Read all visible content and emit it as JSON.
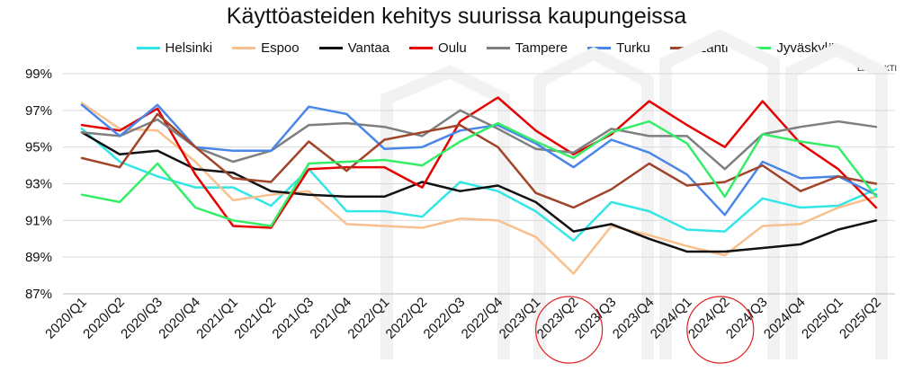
{
  "chart_data": {
    "type": "line",
    "title": "Käyttöasteiden kehitys suurissa kaupungeissa",
    "source": "Lähde: KTI",
    "xlabel": "",
    "ylabel": "",
    "ylim": [
      87,
      99
    ],
    "yticks": [
      "87%",
      "89%",
      "91%",
      "93%",
      "95%",
      "97%",
      "99%"
    ],
    "ytick_values": [
      87,
      89,
      91,
      93,
      95,
      97,
      99
    ],
    "grid": "horizontal",
    "legend_position": "top",
    "categories": [
      "2020/Q1",
      "2020/Q2",
      "2020/Q3",
      "2020/Q4",
      "2021/Q1",
      "2021/Q2",
      "2021/Q3",
      "2021/Q4",
      "2022/Q1",
      "2022/Q2",
      "2022/Q3",
      "2022/Q4",
      "2023/Q1",
      "2023/Q2",
      "2023/Q3",
      "2023/Q4",
      "2024/Q1",
      "2024/Q2",
      "2024/Q3",
      "2024/Q4",
      "2025/Q1",
      "2025/Q2"
    ],
    "highlighted_categories": [
      "2023/Q2",
      "2024/Q2"
    ],
    "highlight_color": "#e02020",
    "series": [
      {
        "name": "Helsinki",
        "color": "#33e6e6",
        "values": [
          96.0,
          94.2,
          93.4,
          92.8,
          92.8,
          91.8,
          93.8,
          91.5,
          91.5,
          91.2,
          93.1,
          92.6,
          91.5,
          89.9,
          92.0,
          91.5,
          90.5,
          90.4,
          92.2,
          91.7,
          91.8,
          92.7
        ]
      },
      {
        "name": "Espoo",
        "color": "#f9c08e",
        "values": [
          97.4,
          96.0,
          95.9,
          94.2,
          92.1,
          92.4,
          92.6,
          90.8,
          90.7,
          90.6,
          91.1,
          91.0,
          90.1,
          88.1,
          90.7,
          90.2,
          89.6,
          89.1,
          90.7,
          90.8,
          91.7,
          92.3
        ]
      },
      {
        "name": "Vantaa",
        "color": "#111111",
        "values": [
          95.8,
          94.6,
          94.8,
          93.8,
          93.6,
          92.6,
          92.4,
          92.3,
          92.3,
          93.1,
          92.6,
          92.9,
          92.0,
          90.4,
          90.8,
          90.0,
          89.3,
          89.3,
          89.5,
          89.7,
          90.5,
          91.0
        ]
      },
      {
        "name": "Oulu",
        "color": "#e60000",
        "values": [
          96.2,
          95.9,
          97.1,
          93.5,
          90.7,
          90.6,
          93.8,
          93.9,
          93.9,
          92.8,
          96.4,
          97.7,
          95.9,
          94.6,
          95.7,
          97.5,
          96.2,
          95.0,
          97.5,
          95.2,
          93.8,
          91.7
        ]
      },
      {
        "name": "Tampere",
        "color": "#7f7f7f",
        "values": [
          95.8,
          95.6,
          96.5,
          95.0,
          94.2,
          94.8,
          96.2,
          96.3,
          96.1,
          95.6,
          97.0,
          96.0,
          94.9,
          94.7,
          96.0,
          95.6,
          95.6,
          93.8,
          95.7,
          96.1,
          96.4,
          96.1
        ]
      },
      {
        "name": "Turku",
        "color": "#4a86e8",
        "values": [
          97.3,
          95.6,
          97.3,
          95.0,
          94.8,
          94.8,
          97.2,
          96.8,
          94.9,
          95.0,
          95.9,
          96.2,
          95.2,
          93.9,
          95.4,
          94.7,
          93.5,
          91.3,
          94.2,
          93.3,
          93.4,
          92.4
        ]
      },
      {
        "name": "Lahti",
        "color": "#a0442a",
        "values": [
          94.4,
          93.9,
          96.8,
          95.0,
          93.3,
          93.1,
          95.3,
          93.7,
          95.4,
          95.8,
          96.2,
          95.0,
          92.5,
          91.7,
          92.7,
          94.1,
          92.9,
          93.1,
          94.0,
          92.6,
          93.4,
          93.0
        ]
      },
      {
        "name": "Jyväskylä",
        "color": "#33ee66",
        "values": [
          92.4,
          92.0,
          94.1,
          91.7,
          91.0,
          90.7,
          94.1,
          94.2,
          94.3,
          94.0,
          95.3,
          96.3,
          95.3,
          94.4,
          95.8,
          96.4,
          95.2,
          92.3,
          95.7,
          95.3,
          95.0,
          92.3
        ]
      }
    ]
  }
}
